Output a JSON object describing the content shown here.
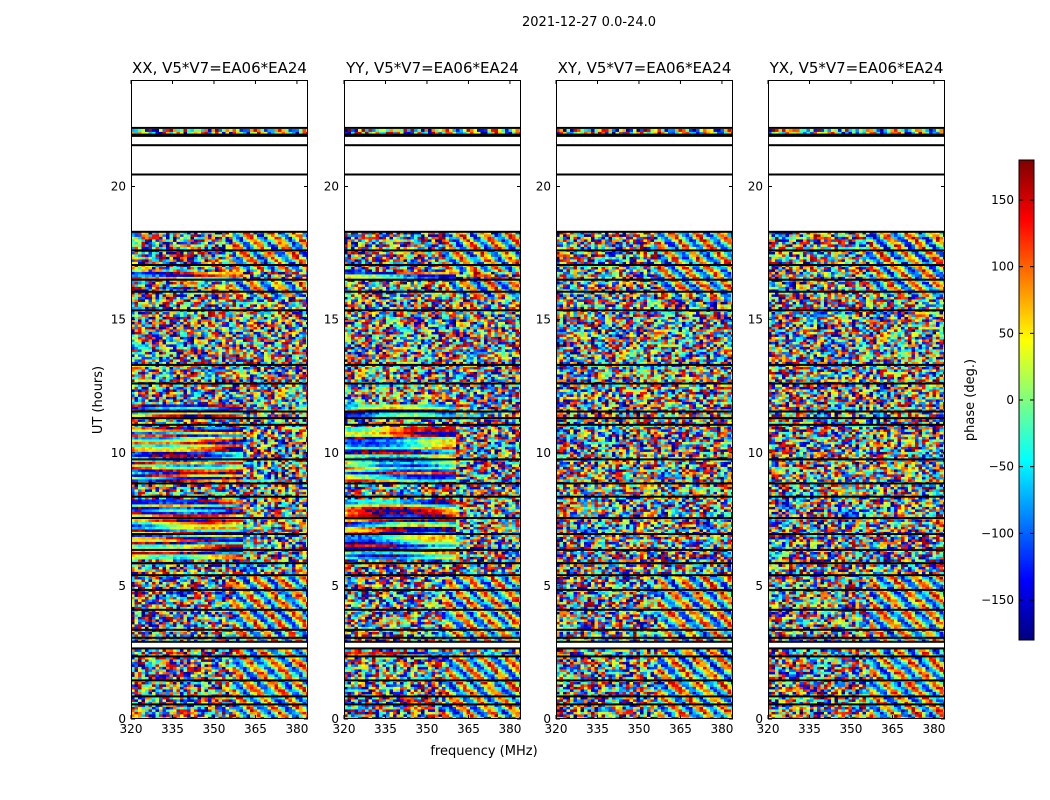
{
  "figure": {
    "suptitle": "2021-12-27 0.0-24.0",
    "xlabel": "frequency (MHz)",
    "ylabel": "UT (hours)",
    "colorbar_label": "phase (deg.)"
  },
  "chart_data": {
    "type": "heatmap",
    "title": "2021-12-27 0.0-24.0",
    "xlabel": "frequency (MHz)",
    "ylabel": "UT (hours)",
    "xlim": [
      320,
      384
    ],
    "ylim": [
      0,
      24
    ],
    "xticks": [
      320,
      335,
      350,
      365,
      380
    ],
    "yticks": [
      0,
      5,
      10,
      15,
      20
    ],
    "colorbar": {
      "label": "phase (deg.)",
      "range": [
        -180,
        180
      ],
      "ticks": [
        150,
        100,
        50,
        0,
        -50,
        -100,
        -150
      ],
      "tick_labels": [
        "150",
        "100",
        "50",
        "0",
        "−50",
        "−100",
        "−150"
      ],
      "colormap": "jet",
      "colors": [
        "#00007f",
        "#0000ff",
        "#007fff",
        "#00ffff",
        "#7fff7f",
        "#ffff00",
        "#ff7f00",
        "#ff0000",
        "#7f0000"
      ]
    },
    "no_data_ut_ranges": [
      [
        22.2,
        24.0
      ],
      [
        20.45,
        21.95
      ],
      [
        18.3,
        20.45
      ],
      [
        2.65,
        2.9
      ]
    ],
    "flagged_line_ut": [
      0.55,
      0.85,
      1.45,
      2.35,
      3.05,
      3.35,
      4.1,
      4.85,
      5.4,
      5.85,
      6.35,
      6.95,
      7.55,
      8.35,
      8.85,
      9.75,
      11.05,
      11.3,
      11.55,
      12.6,
      13.3,
      15.35,
      16.05,
      16.5,
      17.05,
      17.6,
      21.55,
      21.9
    ],
    "panels": [
      {
        "title": "XX, V5*V7=EA06*EA24",
        "coherent_segments_ut": [
          [
            8.9,
            11.0
          ],
          [
            6.0,
            8.3
          ],
          [
            16.5,
            16.8
          ],
          [
            11.4,
            11.8
          ]
        ]
      },
      {
        "title": "YY, V5*V7=EA06*EA24",
        "coherent_segments_ut": [
          [
            8.9,
            11.0
          ],
          [
            6.0,
            8.3
          ],
          [
            16.5,
            16.8
          ],
          [
            11.4,
            11.8
          ],
          [
            2.4,
            2.55
          ]
        ]
      },
      {
        "title": "XY, V5*V7=EA06*EA24",
        "coherent_segments_ut": []
      },
      {
        "title": "YX, V5*V7=EA06*EA24",
        "coherent_segments_ut": []
      }
    ]
  }
}
